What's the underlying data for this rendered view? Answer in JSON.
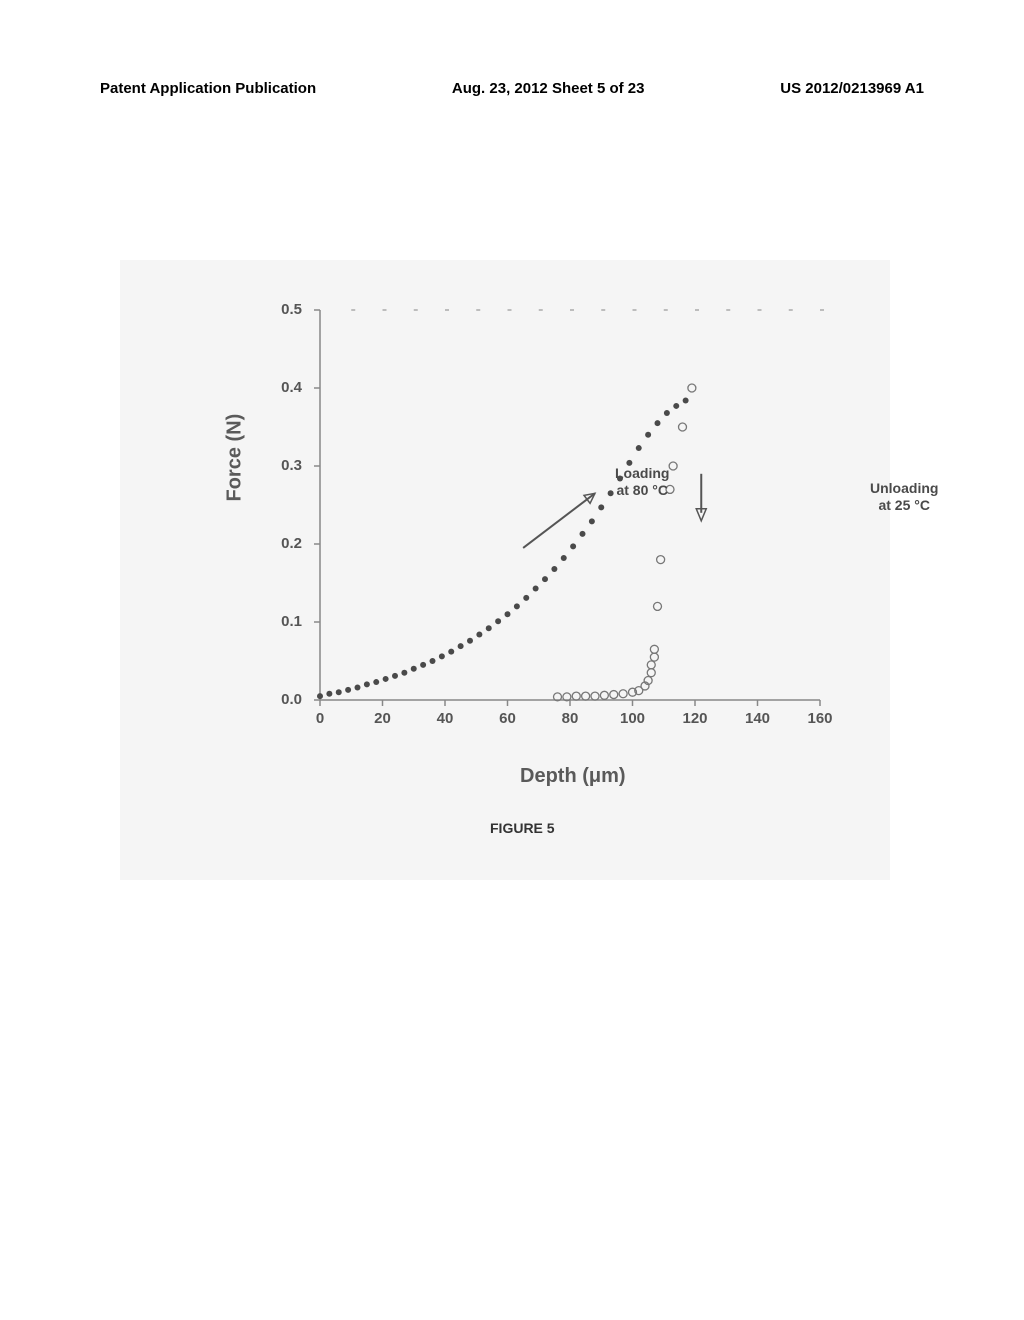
{
  "header": {
    "left": "Patent Application Publication",
    "center": "Aug. 23, 2012  Sheet 5 of 23",
    "right": "US 2012/0213969 A1"
  },
  "chart": {
    "type": "scatter",
    "xlabel": "Depth (μm)",
    "ylabel": "Force (N)",
    "xlim": [
      0,
      160
    ],
    "ylim": [
      0.0,
      0.5
    ],
    "xticks": [
      0,
      20,
      40,
      60,
      80,
      100,
      120,
      140,
      160
    ],
    "yticks": [
      "0.0",
      "0.1",
      "0.2",
      "0.3",
      "0.4",
      "0.5"
    ],
    "ytick_values": [
      0.0,
      0.1,
      0.2,
      0.3,
      0.4,
      0.5
    ],
    "background_color": "#f5f5f5",
    "axis_color": "#888888",
    "grid_color": "#aaaaaa",
    "annotations": {
      "loading": "Loading\nat 80 °C",
      "unloading": "Unloading\nat 25 °C"
    },
    "series": {
      "loading": {
        "color": "#4a4a4a",
        "marker": "circle",
        "marker_size": 3,
        "points": [
          [
            0,
            0.005
          ],
          [
            3,
            0.008
          ],
          [
            6,
            0.01
          ],
          [
            9,
            0.013
          ],
          [
            12,
            0.016
          ],
          [
            15,
            0.02
          ],
          [
            18,
            0.023
          ],
          [
            21,
            0.027
          ],
          [
            24,
            0.031
          ],
          [
            27,
            0.035
          ],
          [
            30,
            0.04
          ],
          [
            33,
            0.045
          ],
          [
            36,
            0.05
          ],
          [
            39,
            0.056
          ],
          [
            42,
            0.062
          ],
          [
            45,
            0.069
          ],
          [
            48,
            0.076
          ],
          [
            51,
            0.084
          ],
          [
            54,
            0.092
          ],
          [
            57,
            0.101
          ],
          [
            60,
            0.11
          ],
          [
            63,
            0.12
          ],
          [
            66,
            0.131
          ],
          [
            69,
            0.143
          ],
          [
            72,
            0.155
          ],
          [
            75,
            0.168
          ],
          [
            78,
            0.182
          ],
          [
            81,
            0.197
          ],
          [
            84,
            0.213
          ],
          [
            87,
            0.229
          ],
          [
            90,
            0.247
          ],
          [
            93,
            0.265
          ],
          [
            96,
            0.284
          ],
          [
            99,
            0.304
          ],
          [
            102,
            0.323
          ],
          [
            105,
            0.34
          ],
          [
            108,
            0.355
          ],
          [
            111,
            0.368
          ],
          [
            114,
            0.377
          ],
          [
            117,
            0.384
          ]
        ]
      },
      "unloading": {
        "color": "#777777",
        "marker": "open-circle",
        "marker_size": 4,
        "points": [
          [
            119,
            0.4
          ],
          [
            116,
            0.35
          ],
          [
            113,
            0.3
          ],
          [
            112,
            0.27
          ],
          [
            109,
            0.18
          ],
          [
            108,
            0.12
          ],
          [
            107,
            0.065
          ],
          [
            107,
            0.055
          ],
          [
            106,
            0.045
          ],
          [
            106,
            0.035
          ],
          [
            105,
            0.025
          ],
          [
            104,
            0.018
          ],
          [
            102,
            0.012
          ],
          [
            100,
            0.01
          ],
          [
            97,
            0.008
          ],
          [
            94,
            0.007
          ],
          [
            91,
            0.006
          ],
          [
            88,
            0.005
          ],
          [
            85,
            0.005
          ],
          [
            82,
            0.005
          ],
          [
            79,
            0.004
          ],
          [
            76,
            0.004
          ]
        ]
      }
    }
  },
  "caption": "FIGURE 5"
}
